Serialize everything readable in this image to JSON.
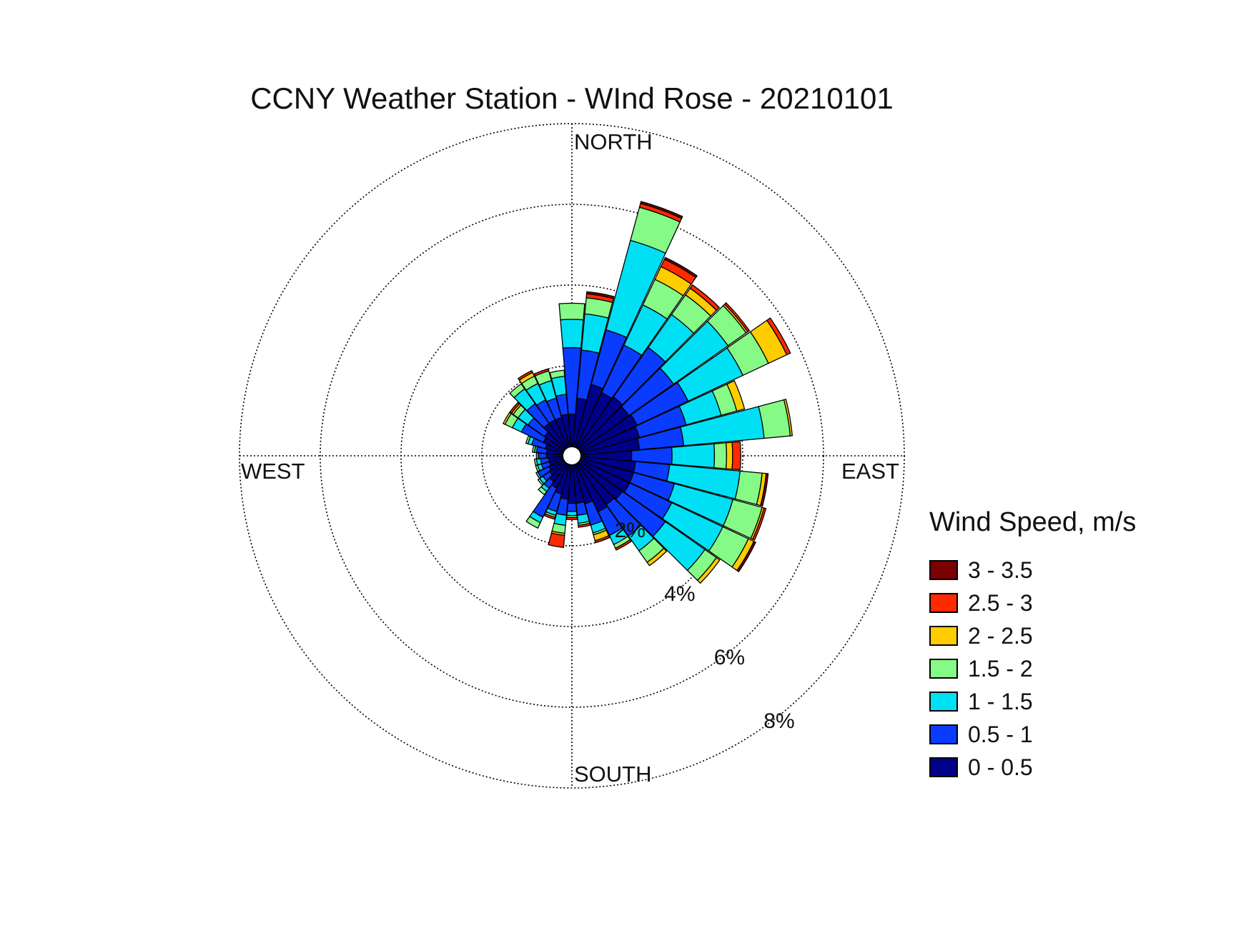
{
  "chart_data": {
    "type": "wind-rose",
    "title": "CCNY Weather Station - WInd Rose - 20210101",
    "direction_labels": {
      "north": "NORTH",
      "east": "EAST",
      "south": "SOUTH",
      "west": "WEST"
    },
    "radial_ticks": [
      {
        "value": 2,
        "label": "2%"
      },
      {
        "value": 4,
        "label": "4%"
      },
      {
        "value": 6,
        "label": "6%"
      },
      {
        "value": 8,
        "label": "8%"
      }
    ],
    "radial_max": 8,
    "sector_count": 36,
    "legend_title": "Wind Speed, m/s",
    "speed_bins": [
      {
        "label": "0 - 0.5",
        "color": "#00008b"
      },
      {
        "label": "0.5 - 1",
        "color": "#0a3cff"
      },
      {
        "label": "1 - 1.5",
        "color": "#00e0f5"
      },
      {
        "label": "1.5 - 2",
        "color": "#86fa86"
      },
      {
        "label": "2 - 2.5",
        "color": "#ffcc00"
      },
      {
        "label": "2.5 - 3",
        "color": "#ff2a00"
      },
      {
        "label": "3 - 3.5",
        "color": "#7b0000"
      }
    ],
    "sectors": [
      {
        "direction": 0,
        "cumulative": [
          0.8,
          2.45,
          3.15,
          3.55,
          3.55,
          3.55,
          3.55
        ]
      },
      {
        "direction": 10,
        "cumulative": [
          1.2,
          2.4,
          3.3,
          3.7,
          3.7,
          3.8,
          3.85
        ]
      },
      {
        "direction": 20,
        "cumulative": [
          1.6,
          3.0,
          5.3,
          6.15,
          6.15,
          6.25,
          6.3
        ]
      },
      {
        "direction": 30,
        "cumulative": [
          1.5,
          2.8,
          3.9,
          4.6,
          4.95,
          5.15,
          5.2
        ]
      },
      {
        "direction": 40,
        "cumulative": [
          1.55,
          3.05,
          4.05,
          4.65,
          4.85,
          4.95,
          4.95
        ]
      },
      {
        "direction": 50,
        "cumulative": [
          1.5,
          2.85,
          4.5,
          5.05,
          5.1,
          5.15,
          5.15
        ]
      },
      {
        "direction": 60,
        "cumulative": [
          1.55,
          2.95,
          4.45,
          5.15,
          5.65,
          5.75,
          5.75
        ]
      },
      {
        "direction": 70,
        "cumulative": [
          1.5,
          2.7,
          3.6,
          4.0,
          4.2,
          4.2,
          4.2
        ]
      },
      {
        "direction": 80,
        "cumulative": [
          1.45,
          2.55,
          4.55,
          5.2,
          5.25,
          5.25,
          5.25
        ]
      },
      {
        "direction": 90,
        "cumulative": [
          1.25,
          2.25,
          3.3,
          3.6,
          3.75,
          3.95,
          3.95
        ]
      },
      {
        "direction": 100,
        "cumulative": [
          1.35,
          2.2,
          3.95,
          4.5,
          4.6,
          4.6,
          4.65
        ]
      },
      {
        "direction": 110,
        "cumulative": [
          1.35,
          2.4,
          3.9,
          4.65,
          4.7,
          4.75,
          4.75
        ]
      },
      {
        "direction": 120,
        "cumulative": [
          1.35,
          2.5,
          3.9,
          4.6,
          4.75,
          4.75,
          4.8
        ]
      },
      {
        "direction": 130,
        "cumulative": [
          1.3,
          2.6,
          3.8,
          4.15,
          4.25,
          4.25,
          4.25
        ]
      },
      {
        "direction": 140,
        "cumulative": [
          1.25,
          2.2,
          2.65,
          3.0,
          3.1,
          3.1,
          3.1
        ]
      },
      {
        "direction": 150,
        "cumulative": [
          1.3,
          1.95,
          2.2,
          2.3,
          2.3,
          2.35,
          2.35
        ]
      },
      {
        "direction": 160,
        "cumulative": [
          1.0,
          1.55,
          1.75,
          1.8,
          1.95,
          2.0,
          2.0
        ]
      },
      {
        "direction": 170,
        "cumulative": [
          0.95,
          1.25,
          1.45,
          1.5,
          1.5,
          1.55,
          1.55
        ]
      },
      {
        "direction": 180,
        "cumulative": [
          0.95,
          1.15,
          1.25,
          1.3,
          1.3,
          1.35,
          1.35
        ]
      },
      {
        "direction": 190,
        "cumulative": [
          0.85,
          1.25,
          1.5,
          1.7,
          1.75,
          2.05,
          2.05
        ]
      },
      {
        "direction": 200,
        "cumulative": [
          0.75,
          1.2,
          1.3,
          1.35,
          1.35,
          1.4,
          1.4
        ]
      },
      {
        "direction": 210,
        "cumulative": [
          0.65,
          1.45,
          1.6,
          1.75,
          1.75,
          1.75,
          1.75
        ]
      },
      {
        "direction": 220,
        "cumulative": [
          0.55,
          0.75,
          0.85,
          0.95,
          0.95,
          0.95,
          0.95
        ]
      },
      {
        "direction": 230,
        "cumulative": [
          0.45,
          0.65,
          0.75,
          0.8,
          0.8,
          0.8,
          0.8
        ]
      },
      {
        "direction": 240,
        "cumulative": [
          0.4,
          0.7,
          0.75,
          0.75,
          0.75,
          0.75,
          0.75
        ]
      },
      {
        "direction": 250,
        "cumulative": [
          0.35,
          0.55,
          0.65,
          0.7,
          0.7,
          0.7,
          0.7
        ]
      },
      {
        "direction": 260,
        "cumulative": [
          0.35,
          0.55,
          0.65,
          0.7,
          0.7,
          0.7,
          0.7
        ]
      },
      {
        "direction": 270,
        "cumulative": [
          0.4,
          0.6,
          0.65,
          0.65,
          0.65,
          0.65,
          0.65
        ]
      },
      {
        "direction": 280,
        "cumulative": [
          0.4,
          0.65,
          0.7,
          0.75,
          0.75,
          0.75,
          0.75
        ]
      },
      {
        "direction": 290,
        "cumulative": [
          0.45,
          0.8,
          0.9,
          0.95,
          0.95,
          0.95,
          0.95
        ]
      },
      {
        "direction": 300,
        "cumulative": [
          0.55,
          1.15,
          1.4,
          1.6,
          1.65,
          1.65,
          1.65
        ]
      },
      {
        "direction": 310,
        "cumulative": [
          0.6,
          1.1,
          1.4,
          1.55,
          1.6,
          1.65,
          1.65
        ]
      },
      {
        "direction": 320,
        "cumulative": [
          0.75,
          1.35,
          1.8,
          1.95,
          1.95,
          1.95,
          1.95
        ]
      },
      {
        "direction": 330,
        "cumulative": [
          0.75,
          1.3,
          1.75,
          1.95,
          2.05,
          2.1,
          2.1
        ]
      },
      {
        "direction": 340,
        "cumulative": [
          0.75,
          1.25,
          1.7,
          1.95,
          1.95,
          2.0,
          2.0
        ]
      },
      {
        "direction": 350,
        "cumulative": [
          0.8,
          1.3,
          1.75,
          1.9,
          1.9,
          1.9,
          1.9
        ]
      }
    ]
  }
}
